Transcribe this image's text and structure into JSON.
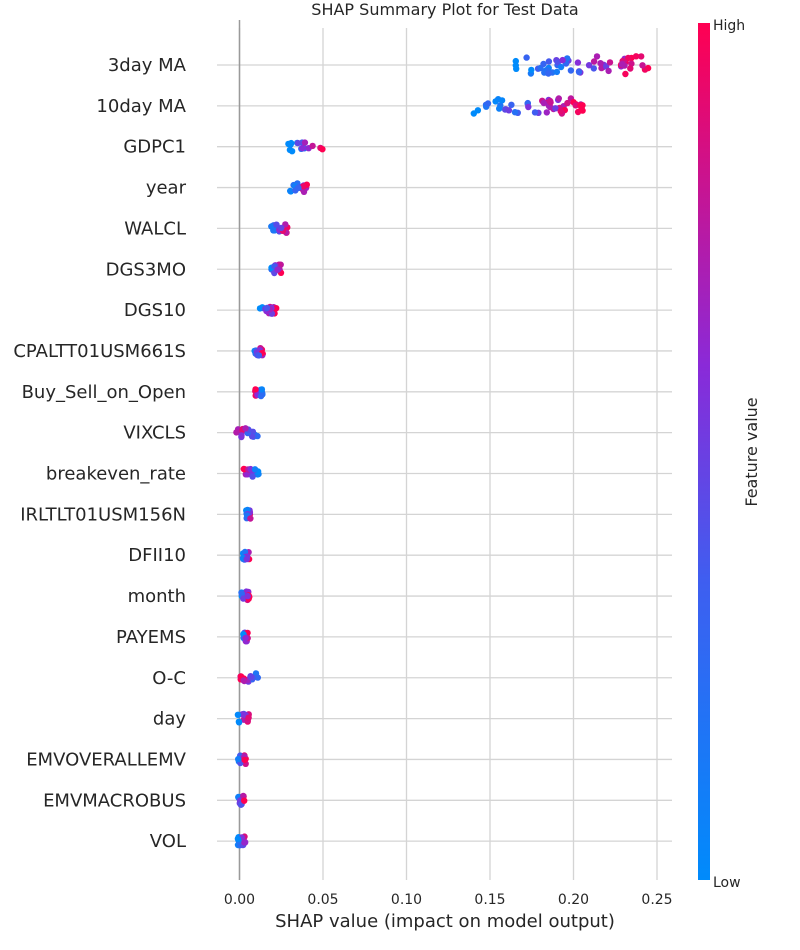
{
  "chart_data": {
    "type": "scatter",
    "title": "SHAP Summary Plot for Test Data",
    "xlabel": "SHAP value (impact on model output)",
    "xlim": [
      -0.013,
      0.26
    ],
    "xticks": [
      0.0,
      0.05,
      0.1,
      0.15,
      0.2,
      0.25
    ],
    "xtick_labels": [
      "0.00",
      "0.05",
      "0.10",
      "0.15",
      "0.20",
      "0.25"
    ],
    "grid": true,
    "colorbar": {
      "label": "Feature value",
      "high_label": "High",
      "low_label": "Low",
      "low_color": "#008bfb",
      "high_color": "#ff0052"
    },
    "features": [
      {
        "name": "3day MA",
        "min": 0.165,
        "max": 0.245,
        "low_color_side": "left"
      },
      {
        "name": "10day MA",
        "min": 0.14,
        "max": 0.206,
        "low_color_side": "left"
      },
      {
        "name": "GDPC1",
        "min": 0.029,
        "max": 0.05,
        "low_color_side": "left"
      },
      {
        "name": "year",
        "min": 0.03,
        "max": 0.041,
        "low_color_side": "left"
      },
      {
        "name": "WALCL",
        "min": 0.019,
        "max": 0.029,
        "low_color_side": "left"
      },
      {
        "name": "DGS3MO",
        "min": 0.019,
        "max": 0.025,
        "low_color_side": "left"
      },
      {
        "name": "DGS10",
        "min": 0.012,
        "max": 0.022,
        "low_color_side": "left"
      },
      {
        "name": "CPALTT01USM661S",
        "min": 0.009,
        "max": 0.014,
        "low_color_side": "left"
      },
      {
        "name": "Buy_Sell_on_Open",
        "min": 0.009,
        "max": 0.014,
        "low_color_side": "right"
      },
      {
        "name": "VIXCLS",
        "min": -0.002,
        "max": 0.012,
        "low_color_side": "right"
      },
      {
        "name": "breakeven_rate",
        "min": 0.002,
        "max": 0.012,
        "low_color_side": "right"
      },
      {
        "name": "IRLTLT01USM156N",
        "min": 0.004,
        "max": 0.007,
        "low_color_side": "left"
      },
      {
        "name": "DFII10",
        "min": 0.002,
        "max": 0.006,
        "low_color_side": "left"
      },
      {
        "name": "month",
        "min": 0.001,
        "max": 0.006,
        "low_color_side": "left"
      },
      {
        "name": "PAYEMS",
        "min": 0.002,
        "max": 0.005,
        "low_color_side": "left"
      },
      {
        "name": "O-C",
        "min": 0.0,
        "max": 0.012,
        "low_color_side": "right"
      },
      {
        "name": "day",
        "min": -0.001,
        "max": 0.006,
        "low_color_side": "left"
      },
      {
        "name": "EMVOVERALLEMV",
        "min": -0.001,
        "max": 0.004,
        "low_color_side": "left"
      },
      {
        "name": "EMVMACROBUS",
        "min": -0.001,
        "max": 0.003,
        "low_color_side": "left"
      },
      {
        "name": "VOL",
        "min": -0.001,
        "max": 0.004,
        "low_color_side": "left"
      }
    ]
  }
}
